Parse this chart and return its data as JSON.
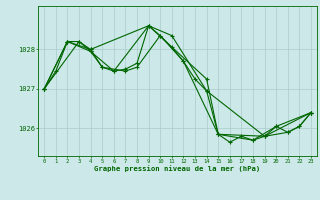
{
  "title": "Graphe pression niveau de la mer (hPa)",
  "background_color": "#cce8e8",
  "grid_color": "#aacccc",
  "line_color": "#006600",
  "xlim": [
    -0.5,
    23.5
  ],
  "ylim": [
    1025.3,
    1029.1
  ],
  "yticks": [
    1026,
    1027,
    1028
  ],
  "xticks": [
    0,
    1,
    2,
    3,
    4,
    5,
    6,
    7,
    8,
    9,
    10,
    11,
    12,
    13,
    14,
    15,
    16,
    17,
    18,
    19,
    20,
    21,
    22,
    23
  ],
  "series1": [
    [
      0,
      1027.0
    ],
    [
      1,
      1027.45
    ],
    [
      2,
      1028.2
    ],
    [
      3,
      1028.2
    ],
    [
      4,
      1028.0
    ],
    [
      5,
      1027.55
    ],
    [
      6,
      1027.45
    ],
    [
      7,
      1027.5
    ],
    [
      8,
      1027.65
    ],
    [
      9,
      1028.6
    ],
    [
      10,
      1028.35
    ],
    [
      11,
      1028.05
    ],
    [
      12,
      1027.7
    ],
    [
      13,
      1027.25
    ],
    [
      14,
      1026.95
    ],
    [
      15,
      1025.85
    ],
    [
      16,
      1025.65
    ],
    [
      17,
      1025.8
    ],
    [
      18,
      1025.7
    ],
    [
      19,
      1025.8
    ],
    [
      20,
      1026.05
    ],
    [
      21,
      1025.9
    ],
    [
      22,
      1026.05
    ],
    [
      23,
      1026.4
    ]
  ],
  "series2": [
    [
      0,
      1027.0
    ],
    [
      2,
      1028.2
    ],
    [
      4,
      1028.0
    ],
    [
      9,
      1028.6
    ],
    [
      11,
      1028.35
    ],
    [
      14,
      1026.95
    ],
    [
      19,
      1025.8
    ],
    [
      23,
      1026.4
    ]
  ],
  "series3": [
    [
      0,
      1027.0
    ],
    [
      3,
      1028.2
    ],
    [
      4,
      1027.95
    ],
    [
      5,
      1027.55
    ],
    [
      7,
      1027.45
    ],
    [
      8,
      1027.55
    ],
    [
      10,
      1028.35
    ],
    [
      12,
      1027.7
    ],
    [
      15,
      1025.85
    ],
    [
      18,
      1025.7
    ],
    [
      20,
      1026.05
    ],
    [
      23,
      1026.4
    ]
  ],
  "series4": [
    [
      0,
      1027.0
    ],
    [
      2,
      1028.2
    ],
    [
      4,
      1027.95
    ],
    [
      6,
      1027.45
    ],
    [
      9,
      1028.6
    ],
    [
      14,
      1027.25
    ],
    [
      15,
      1025.85
    ],
    [
      19,
      1025.8
    ],
    [
      21,
      1025.9
    ],
    [
      22,
      1026.05
    ],
    [
      23,
      1026.4
    ]
  ]
}
